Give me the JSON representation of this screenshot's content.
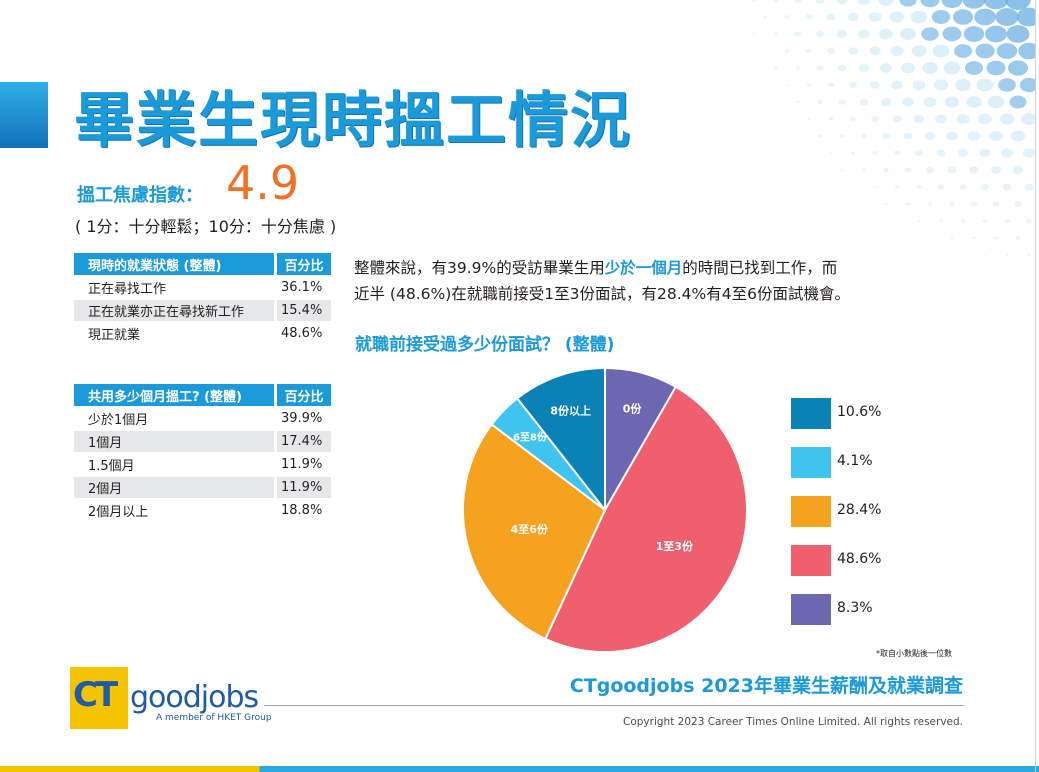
{
  "page": {
    "title": "畢業生現時搵工情況",
    "anxiety_label": "搵工焦慮指數：",
    "anxiety_value": "4.9",
    "anxiety_note": "( 1分：十分輕鬆；10分：十分焦慮 )"
  },
  "table_status": {
    "header": "現時的就業狀態 (整體)",
    "pct_header": "百分比",
    "rows": [
      {
        "label": "正在尋找工作",
        "value": "36.1%"
      },
      {
        "label": "正在就業亦正在尋找新工作",
        "value": "15.4%"
      },
      {
        "label": "現正就業",
        "value": "48.6%"
      }
    ]
  },
  "table_months": {
    "header": "共用多少個月搵工? (整體)",
    "pct_header": "百分比",
    "rows": [
      {
        "label": "少於1個月",
        "value": "39.9%"
      },
      {
        "label": "1個月",
        "value": "17.4%"
      },
      {
        "label": "1.5個月",
        "value": "11.9%"
      },
      {
        "label": "2個月",
        "value": "11.9%"
      },
      {
        "label": "2個月以上",
        "value": "18.8%"
      }
    ]
  },
  "summary": {
    "line1_a": "整體來說，有39.9%的受訪畢業生用",
    "line1_highlight": "少於一個月",
    "line1_b": "的時間已找到工作，而",
    "line2": "近半 (48.6%)在就職前接受1至3份面試，有28.4%有4至6份面試機會。"
  },
  "chart_data": {
    "type": "pie",
    "title": "就職前接受過多少份面試？ (整體)",
    "slices": [
      {
        "label": "0份",
        "value": 8.3,
        "color": "#6c67b0"
      },
      {
        "label": "1至3份",
        "value": 48.6,
        "color": "#ef5f6d"
      },
      {
        "label": "4至6份",
        "value": 28.4,
        "color": "#f5a21f"
      },
      {
        "label": "6至8份",
        "value": 4.1,
        "color": "#3ec4ef"
      },
      {
        "label": "8份以上",
        "value": 10.6,
        "color": "#0b82b5"
      }
    ],
    "legend": [
      {
        "text": "10.6%",
        "color": "#0b82b5"
      },
      {
        "text": "4.1%",
        "color": "#3ec4ef"
      },
      {
        "text": "28.4%",
        "color": "#f5a21f"
      },
      {
        "text": "48.6%",
        "color": "#ef5f6d"
      },
      {
        "text": "8.3%",
        "color": "#6c67b0"
      }
    ],
    "legend_placement": "right",
    "footnote": "*取自小數點後一位數"
  },
  "footer": {
    "logo_ct": "CT",
    "logo_word": "goodjobs",
    "logo_sub": "A member of HKET Group",
    "survey_title": "CTgoodjobs 2023年畢業生薪酬及就業調查",
    "copyright": "Copyright 2023 Career Times Online Limited. All rights reserved."
  }
}
